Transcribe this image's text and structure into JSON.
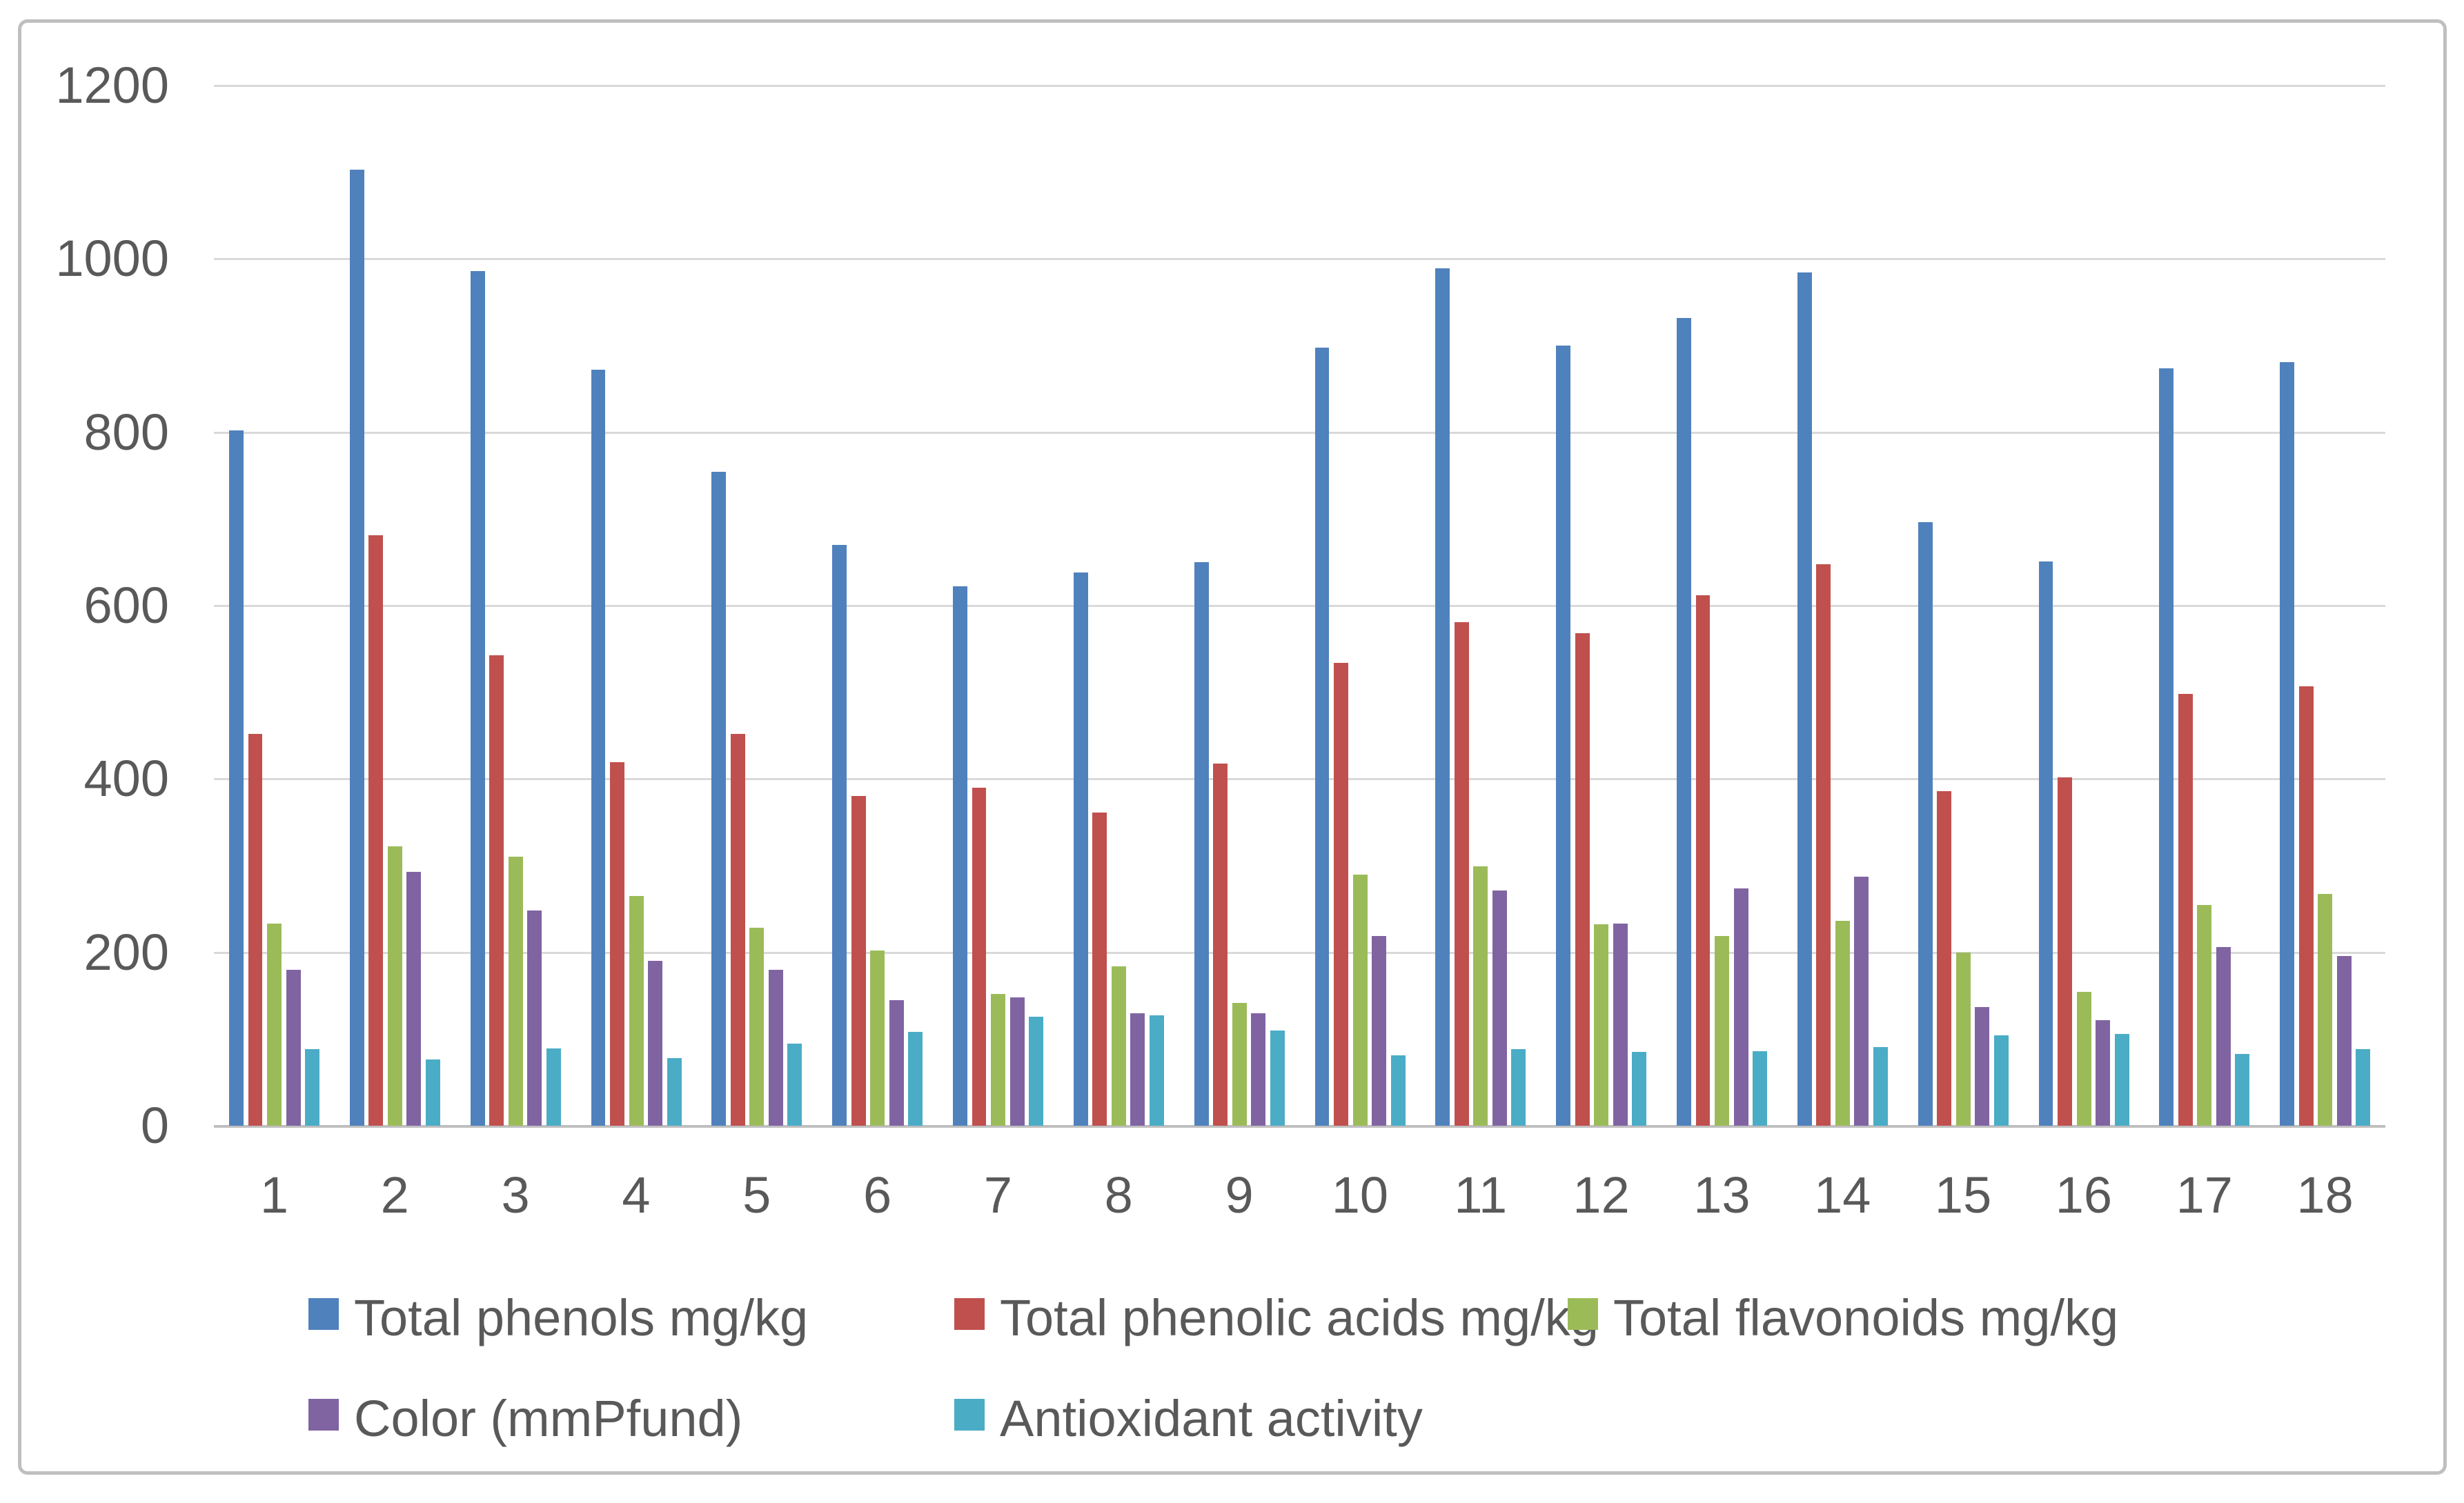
{
  "chart_data": {
    "type": "bar",
    "title": "",
    "categories": [
      "1",
      "2",
      "3",
      "4",
      "5",
      "6",
      "7",
      "8",
      "9",
      "10",
      "11",
      "12",
      "13",
      "14",
      "15",
      "16",
      "17",
      "18"
    ],
    "series": [
      {
        "name": "Total phenols mg/kg",
        "color": "#4F81BD",
        "values": [
          802,
          1103,
          986,
          872,
          754,
          670,
          622,
          638,
          650,
          898,
          989,
          900,
          932,
          984,
          696,
          651,
          874,
          881
        ]
      },
      {
        "name": "Total phenolic acids mg/kg",
        "color": "#C0504D",
        "values": [
          452,
          681,
          543,
          419,
          452,
          380,
          390,
          361,
          418,
          534,
          581,
          568,
          612,
          648,
          386,
          402,
          498,
          507
        ]
      },
      {
        "name": "Total flavonoids mg/kg",
        "color": "#9BBB59",
        "values": [
          233,
          322,
          310,
          265,
          228,
          202,
          152,
          184,
          142,
          290,
          299,
          232,
          219,
          236,
          200,
          154,
          255,
          267
        ]
      },
      {
        "name": "Color (mmPfund)",
        "color": "#8064A2",
        "values": [
          180,
          293,
          248,
          190,
          180,
          145,
          148,
          130,
          130,
          219,
          271,
          233,
          274,
          287,
          137,
          122,
          206,
          196
        ]
      },
      {
        "name": "Antioxidant activity",
        "color": "#4BACC6",
        "values": [
          88,
          76,
          89,
          78,
          95,
          108,
          126,
          127,
          110,
          81,
          88,
          85,
          86,
          91,
          104,
          106,
          83,
          88
        ]
      }
    ],
    "xlabel": "",
    "ylabel": "",
    "ylim": [
      0,
      1200
    ],
    "ytick_interval": 200,
    "yticks": [
      "0",
      "200",
      "400",
      "600",
      "800",
      "1000",
      "1200"
    ],
    "grid": true,
    "legend_position": "bottom",
    "legend_rows": [
      [
        0,
        1,
        2
      ],
      [
        3,
        4
      ]
    ]
  },
  "styles": {
    "gridline_color": "#D9D9D9",
    "axis_line_color": "#BFBFBF",
    "frame_border_color": "#BFBFBF",
    "tick_label_color": "#595959",
    "legend_text_color": "#595959",
    "background_color": "#FFFFFF"
  }
}
